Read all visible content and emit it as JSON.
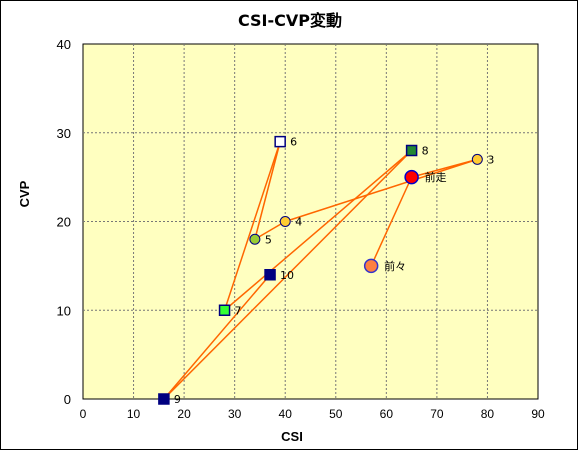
{
  "chart_data": {
    "type": "scatter",
    "title": "CSI-CVP変動",
    "xlabel": "CSI",
    "ylabel": "CVP",
    "xlim": [
      0,
      90
    ],
    "ylim": [
      0,
      40
    ],
    "x_ticks": [
      "0",
      "10",
      "20",
      "30",
      "40",
      "50",
      "60",
      "70",
      "80",
      "90"
    ],
    "y_ticks": [
      "0",
      "10",
      "20",
      "30",
      "40"
    ],
    "grid": true,
    "plot_background": "#ffffc0",
    "line_color": "#ff6600",
    "points": [
      {
        "label": "前々",
        "x": 57,
        "y": 15,
        "marker": "circle-large",
        "fill": "#ff8040",
        "stroke": "#3333cc"
      },
      {
        "label": "前走",
        "x": 65,
        "y": 25,
        "marker": "circle-large",
        "fill": "#ff0000",
        "stroke": "#0000cc"
      },
      {
        "label": "3",
        "x": 78,
        "y": 27,
        "marker": "circle",
        "fill": "#ffcc33",
        "stroke": "#000080"
      },
      {
        "label": "4",
        "x": 40,
        "y": 20,
        "marker": "circle",
        "fill": "#ffcc33",
        "stroke": "#000080"
      },
      {
        "label": "5",
        "x": 34,
        "y": 18,
        "marker": "circle",
        "fill": "#99cc33",
        "stroke": "#000080"
      },
      {
        "label": "6",
        "x": 39,
        "y": 29,
        "marker": "square",
        "fill": "#ffffff",
        "stroke": "#000080"
      },
      {
        "label": "7",
        "x": 28,
        "y": 10,
        "marker": "square",
        "fill": "#33ff33",
        "stroke": "#000080"
      },
      {
        "label": "8",
        "x": 65,
        "y": 28,
        "marker": "square",
        "fill": "#228833",
        "stroke": "#000080"
      },
      {
        "label": "9",
        "x": 16,
        "y": 0,
        "marker": "square",
        "fill": "#000080",
        "stroke": "#000080"
      },
      {
        "label": "10",
        "x": 37,
        "y": 14,
        "marker": "square",
        "fill": "#000080",
        "stroke": "#000080"
      }
    ]
  }
}
